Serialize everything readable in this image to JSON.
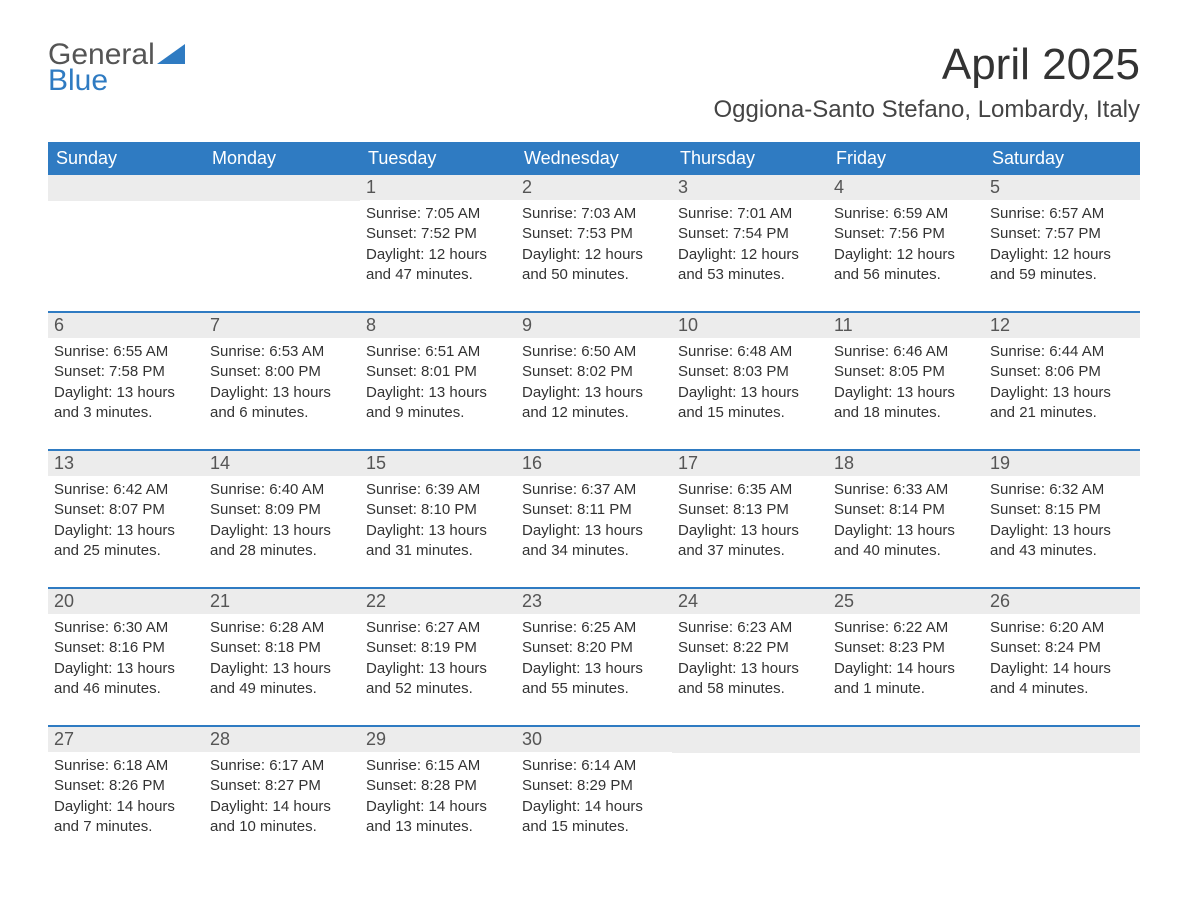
{
  "logo": {
    "line1": "General",
    "line2": "Blue",
    "accent_color": "#2f7bc2"
  },
  "header": {
    "month_title": "April 2025",
    "location": "Oggiona-Santo Stefano, Lombardy, Italy"
  },
  "colors": {
    "header_bg": "#2f7bc2",
    "header_text": "#ffffff",
    "daynum_bg": "#ececec",
    "week_divider": "#2f7bc2",
    "body_text": "#333333"
  },
  "days_of_week": [
    "Sunday",
    "Monday",
    "Tuesday",
    "Wednesday",
    "Thursday",
    "Friday",
    "Saturday"
  ],
  "weeks": [
    [
      {
        "n": "",
        "sunrise": "",
        "sunset": "",
        "daylight": ""
      },
      {
        "n": "",
        "sunrise": "",
        "sunset": "",
        "daylight": ""
      },
      {
        "n": "1",
        "sunrise": "Sunrise: 7:05 AM",
        "sunset": "Sunset: 7:52 PM",
        "daylight": "Daylight: 12 hours and 47 minutes."
      },
      {
        "n": "2",
        "sunrise": "Sunrise: 7:03 AM",
        "sunset": "Sunset: 7:53 PM",
        "daylight": "Daylight: 12 hours and 50 minutes."
      },
      {
        "n": "3",
        "sunrise": "Sunrise: 7:01 AM",
        "sunset": "Sunset: 7:54 PM",
        "daylight": "Daylight: 12 hours and 53 minutes."
      },
      {
        "n": "4",
        "sunrise": "Sunrise: 6:59 AM",
        "sunset": "Sunset: 7:56 PM",
        "daylight": "Daylight: 12 hours and 56 minutes."
      },
      {
        "n": "5",
        "sunrise": "Sunrise: 6:57 AM",
        "sunset": "Sunset: 7:57 PM",
        "daylight": "Daylight: 12 hours and 59 minutes."
      }
    ],
    [
      {
        "n": "6",
        "sunrise": "Sunrise: 6:55 AM",
        "sunset": "Sunset: 7:58 PM",
        "daylight": "Daylight: 13 hours and 3 minutes."
      },
      {
        "n": "7",
        "sunrise": "Sunrise: 6:53 AM",
        "sunset": "Sunset: 8:00 PM",
        "daylight": "Daylight: 13 hours and 6 minutes."
      },
      {
        "n": "8",
        "sunrise": "Sunrise: 6:51 AM",
        "sunset": "Sunset: 8:01 PM",
        "daylight": "Daylight: 13 hours and 9 minutes."
      },
      {
        "n": "9",
        "sunrise": "Sunrise: 6:50 AM",
        "sunset": "Sunset: 8:02 PM",
        "daylight": "Daylight: 13 hours and 12 minutes."
      },
      {
        "n": "10",
        "sunrise": "Sunrise: 6:48 AM",
        "sunset": "Sunset: 8:03 PM",
        "daylight": "Daylight: 13 hours and 15 minutes."
      },
      {
        "n": "11",
        "sunrise": "Sunrise: 6:46 AM",
        "sunset": "Sunset: 8:05 PM",
        "daylight": "Daylight: 13 hours and 18 minutes."
      },
      {
        "n": "12",
        "sunrise": "Sunrise: 6:44 AM",
        "sunset": "Sunset: 8:06 PM",
        "daylight": "Daylight: 13 hours and 21 minutes."
      }
    ],
    [
      {
        "n": "13",
        "sunrise": "Sunrise: 6:42 AM",
        "sunset": "Sunset: 8:07 PM",
        "daylight": "Daylight: 13 hours and 25 minutes."
      },
      {
        "n": "14",
        "sunrise": "Sunrise: 6:40 AM",
        "sunset": "Sunset: 8:09 PM",
        "daylight": "Daylight: 13 hours and 28 minutes."
      },
      {
        "n": "15",
        "sunrise": "Sunrise: 6:39 AM",
        "sunset": "Sunset: 8:10 PM",
        "daylight": "Daylight: 13 hours and 31 minutes."
      },
      {
        "n": "16",
        "sunrise": "Sunrise: 6:37 AM",
        "sunset": "Sunset: 8:11 PM",
        "daylight": "Daylight: 13 hours and 34 minutes."
      },
      {
        "n": "17",
        "sunrise": "Sunrise: 6:35 AM",
        "sunset": "Sunset: 8:13 PM",
        "daylight": "Daylight: 13 hours and 37 minutes."
      },
      {
        "n": "18",
        "sunrise": "Sunrise: 6:33 AM",
        "sunset": "Sunset: 8:14 PM",
        "daylight": "Daylight: 13 hours and 40 minutes."
      },
      {
        "n": "19",
        "sunrise": "Sunrise: 6:32 AM",
        "sunset": "Sunset: 8:15 PM",
        "daylight": "Daylight: 13 hours and 43 minutes."
      }
    ],
    [
      {
        "n": "20",
        "sunrise": "Sunrise: 6:30 AM",
        "sunset": "Sunset: 8:16 PM",
        "daylight": "Daylight: 13 hours and 46 minutes."
      },
      {
        "n": "21",
        "sunrise": "Sunrise: 6:28 AM",
        "sunset": "Sunset: 8:18 PM",
        "daylight": "Daylight: 13 hours and 49 minutes."
      },
      {
        "n": "22",
        "sunrise": "Sunrise: 6:27 AM",
        "sunset": "Sunset: 8:19 PM",
        "daylight": "Daylight: 13 hours and 52 minutes."
      },
      {
        "n": "23",
        "sunrise": "Sunrise: 6:25 AM",
        "sunset": "Sunset: 8:20 PM",
        "daylight": "Daylight: 13 hours and 55 minutes."
      },
      {
        "n": "24",
        "sunrise": "Sunrise: 6:23 AM",
        "sunset": "Sunset: 8:22 PM",
        "daylight": "Daylight: 13 hours and 58 minutes."
      },
      {
        "n": "25",
        "sunrise": "Sunrise: 6:22 AM",
        "sunset": "Sunset: 8:23 PM",
        "daylight": "Daylight: 14 hours and 1 minute."
      },
      {
        "n": "26",
        "sunrise": "Sunrise: 6:20 AM",
        "sunset": "Sunset: 8:24 PM",
        "daylight": "Daylight: 14 hours and 4 minutes."
      }
    ],
    [
      {
        "n": "27",
        "sunrise": "Sunrise: 6:18 AM",
        "sunset": "Sunset: 8:26 PM",
        "daylight": "Daylight: 14 hours and 7 minutes."
      },
      {
        "n": "28",
        "sunrise": "Sunrise: 6:17 AM",
        "sunset": "Sunset: 8:27 PM",
        "daylight": "Daylight: 14 hours and 10 minutes."
      },
      {
        "n": "29",
        "sunrise": "Sunrise: 6:15 AM",
        "sunset": "Sunset: 8:28 PM",
        "daylight": "Daylight: 14 hours and 13 minutes."
      },
      {
        "n": "30",
        "sunrise": "Sunrise: 6:14 AM",
        "sunset": "Sunset: 8:29 PM",
        "daylight": "Daylight: 14 hours and 15 minutes."
      },
      {
        "n": "",
        "sunrise": "",
        "sunset": "",
        "daylight": ""
      },
      {
        "n": "",
        "sunrise": "",
        "sunset": "",
        "daylight": ""
      },
      {
        "n": "",
        "sunrise": "",
        "sunset": "",
        "daylight": ""
      }
    ]
  ]
}
